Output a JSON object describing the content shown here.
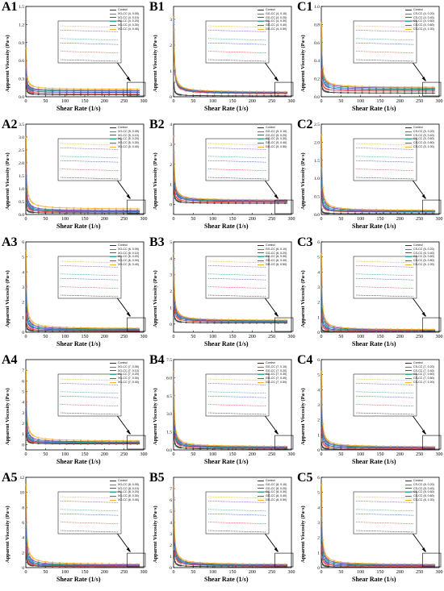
{
  "figure": {
    "xlabel": "Shear Rate (1/s)",
    "ylabel": "Apparent Viscosity (Pa·s)"
  },
  "colors": [
    "#333333",
    "#e8463a",
    "#3b55c4",
    "#2aa894",
    "#7b4fb0",
    "#f0b030"
  ],
  "chart_data": [
    {
      "id": "A1",
      "type": "line",
      "xlim": [
        0,
        300
      ],
      "xticks": [
        0,
        50,
        100,
        150,
        200,
        250,
        300
      ],
      "ylim": [
        0,
        1.5
      ],
      "yticks": [
        0.0,
        0.3,
        0.6,
        0.9,
        1.2,
        1.5
      ],
      "legend": [
        "Control",
        "XG-CC (4, 0.05)",
        "XG-CC (4, 0.10)",
        "XG-CC (4, 0.20)",
        "XG-CC (4, 0.30)",
        "XG-CC (4, 0.40)"
      ],
      "peaks": [
        0.22,
        0.33,
        0.42,
        0.48,
        0.55,
        0.8
      ],
      "tails": [
        0.03,
        0.05,
        0.07,
        0.09,
        0.1,
        0.12
      ]
    },
    {
      "id": "B1",
      "type": "line",
      "xlim": [
        0,
        300
      ],
      "xticks": [
        0,
        50,
        100,
        150,
        200,
        250,
        300
      ],
      "ylim": [
        0,
        3.5
      ],
      "yticks": [
        0,
        1,
        2,
        3
      ],
      "legend": [
        "Control",
        "GG-CC (4, 0.10)",
        "GG-CC (4, 0.20)",
        "GG-CC (4, 0.30)",
        "GG-CC (4, 0.40)",
        "GG-CC (4, 0.50)"
      ],
      "peaks": [
        0.55,
        2.6,
        2.8,
        2.9,
        3.0,
        3.1
      ],
      "tails": [
        0.03,
        0.1,
        0.12,
        0.14,
        0.15,
        0.17
      ]
    },
    {
      "id": "C1",
      "type": "line",
      "xlim": [
        0,
        300
      ],
      "xticks": [
        0,
        50,
        100,
        150,
        200,
        250,
        300
      ],
      "ylim": [
        0,
        1.0
      ],
      "yticks": [
        0.0,
        0.2,
        0.4,
        0.6,
        0.8,
        1.0
      ],
      "legend": [
        "Control",
        "CS-CC (4, 0.20)",
        "CS-CC (4, 0.40)",
        "CS-CC (4, 0.60)",
        "CS-CC (4, 0.80)",
        "CS-CC (4, 1.00)"
      ],
      "peaks": [
        0.18,
        0.3,
        0.5,
        0.65,
        0.78,
        0.82
      ],
      "tails": [
        0.04,
        0.06,
        0.07,
        0.08,
        0.09,
        0.1
      ]
    },
    {
      "id": "A2",
      "type": "line",
      "xlim": [
        0,
        300
      ],
      "xticks": [
        0,
        50,
        100,
        150,
        200,
        250,
        300
      ],
      "ylim": [
        0,
        3.5
      ],
      "yticks": [
        0.0,
        0.5,
        1.0,
        1.5,
        2.0,
        2.5,
        3.0,
        3.5
      ],
      "legend": [
        "Control",
        "XG-CC (5, 0.05)",
        "XG-CC (5, 0.10)",
        "XG-CC (5, 0.20)",
        "XG-CC (5, 0.30)",
        "XG-CC (5, 0.40)"
      ],
      "peaks": [
        0.4,
        0.9,
        1.3,
        1.6,
        2.0,
        3.0
      ],
      "tails": [
        0.05,
        0.08,
        0.1,
        0.12,
        0.14,
        0.2
      ]
    },
    {
      "id": "B2",
      "type": "line",
      "xlim": [
        0,
        300
      ],
      "xticks": [
        0,
        50,
        100,
        150,
        200,
        250,
        300
      ],
      "ylim": [
        -0.5,
        4
      ],
      "yticks": [
        0,
        1,
        2,
        3,
        4
      ],
      "legend": [
        "Control",
        "GG-CC (5, 0.10)",
        "GG-CC (5, 0.20)",
        "GG-CC (5, 0.30)",
        "GG-CC (5, 0.40)",
        "GG-CC (5, 0.50)"
      ],
      "peaks": [
        0.9,
        1.4,
        2.2,
        2.6,
        3.0,
        3.4
      ],
      "tails": [
        0.05,
        0.1,
        0.13,
        0.15,
        0.17,
        0.2
      ]
    },
    {
      "id": "C2",
      "type": "line",
      "xlim": [
        0,
        300
      ],
      "xticks": [
        0,
        50,
        100,
        150,
        200,
        250,
        300
      ],
      "ylim": [
        0,
        2.5
      ],
      "yticks": [
        0.0,
        0.5,
        1.0,
        1.5,
        2.0,
        2.5
      ],
      "legend": [
        "Control",
        "CS-CC (5, 0.20)",
        "CS-CC (5, 0.40)",
        "CS-CC (5, 0.60)",
        "CS-CC (5, 0.80)",
        "CS-CC (5, 1.00)"
      ],
      "peaks": [
        0.15,
        0.7,
        0.9,
        1.3,
        1.8,
        2.2
      ],
      "tails": [
        0.02,
        0.06,
        0.07,
        0.08,
        0.09,
        0.1
      ]
    },
    {
      "id": "A3",
      "type": "line",
      "xlim": [
        0,
        300
      ],
      "xticks": [
        0,
        50,
        100,
        150,
        200,
        250,
        300
      ],
      "ylim": [
        0,
        6
      ],
      "yticks": [
        0,
        1,
        2,
        3,
        4,
        5,
        6
      ],
      "legend": [
        "Control",
        "XG-CC (6, 0.05)",
        "XG-CC (6, 0.10)",
        "XG-CC (6, 0.20)",
        "XG-CC (6, 0.30)",
        "XG-CC (6, 0.40)"
      ],
      "peaks": [
        0.6,
        1.2,
        2.3,
        3.0,
        4.0,
        5.4
      ],
      "tails": [
        0.05,
        0.1,
        0.12,
        0.15,
        0.18,
        0.22
      ]
    },
    {
      "id": "B3",
      "type": "line",
      "xlim": [
        0,
        300
      ],
      "xticks": [
        0,
        50,
        100,
        150,
        200,
        250,
        300
      ],
      "ylim": [
        -0.5,
        5
      ],
      "yticks": [
        0,
        1,
        2,
        3,
        4,
        5
      ],
      "legend": [
        "Control",
        "GG-CC (6, 0.10)",
        "GG-CC (6, 0.20)",
        "GG-CC (6, 0.30)",
        "GG-CC (6, 0.40)",
        "GG-CC (6, 0.50)"
      ],
      "peaks": [
        0.9,
        2.0,
        2.8,
        3.4,
        3.9,
        4.3
      ],
      "tails": [
        0.05,
        0.1,
        0.13,
        0.15,
        0.17,
        0.2
      ]
    },
    {
      "id": "C3",
      "type": "line",
      "xlim": [
        0,
        300
      ],
      "xticks": [
        0,
        50,
        100,
        150,
        200,
        250,
        300
      ],
      "ylim": [
        0,
        6
      ],
      "yticks": [
        0,
        1,
        2,
        3,
        4,
        5,
        6
      ],
      "legend": [
        "Control",
        "CS-CC (6, 0.20)",
        "CS-CC (6, 0.40)",
        "CS-CC (6, 0.60)",
        "CS-CC (6, 0.80)",
        "CS-CC (6, 1.00)"
      ],
      "peaks": [
        0.3,
        1.2,
        2.0,
        3.0,
        4.2,
        5.2
      ],
      "tails": [
        0.03,
        0.06,
        0.08,
        0.1,
        0.12,
        0.14
      ]
    },
    {
      "id": "A4",
      "type": "line",
      "xlim": [
        0,
        300
      ],
      "xticks": [
        0,
        50,
        100,
        150,
        200,
        250,
        300
      ],
      "ylim": [
        -0.5,
        8
      ],
      "yticks": [
        0,
        1,
        2,
        3,
        4,
        5,
        6,
        7
      ],
      "legend": [
        "Control",
        "XG-CC (7, 0.05)",
        "XG-CC (7, 0.10)",
        "XG-CC (7, 0.20)",
        "XG-CC (7, 0.30)",
        "XG-CC (7, 0.40)"
      ],
      "peaks": [
        1.2,
        1.8,
        2.6,
        3.5,
        4.8,
        7.0
      ],
      "tails": [
        0.05,
        0.1,
        0.14,
        0.18,
        0.22,
        0.3
      ]
    },
    {
      "id": "B4",
      "type": "line",
      "xlim": [
        0,
        300
      ],
      "xticks": [
        0,
        50,
        100,
        150,
        200,
        250,
        300
      ],
      "ylim": [
        0,
        7.5
      ],
      "yticks": [
        0.0,
        1.5,
        3.0,
        4.5,
        6.0,
        7.5
      ],
      "legend": [
        "Control",
        "GG-CC (7, 0.10)",
        "GG-CC (7, 0.20)",
        "GG-CC (7, 0.30)",
        "GG-CC (7, 0.40)",
        "GG-CC (7, 0.50)"
      ],
      "peaks": [
        1.5,
        3.0,
        3.8,
        4.5,
        5.6,
        6.5
      ],
      "tails": [
        0.06,
        0.12,
        0.15,
        0.18,
        0.2,
        0.25
      ]
    },
    {
      "id": "C4",
      "type": "line",
      "xlim": [
        0,
        300
      ],
      "xticks": [
        0,
        50,
        100,
        150,
        200,
        250,
        300
      ],
      "ylim": [
        0,
        6
      ],
      "yticks": [
        0,
        1,
        2,
        3,
        4,
        5,
        6
      ],
      "legend": [
        "Control",
        "CS-CC (7, 0.20)",
        "CS-CC (7, 0.40)",
        "CS-CC (7, 0.60)",
        "CS-CC (7, 0.80)",
        "CS-CC (7, 1.00)"
      ],
      "peaks": [
        0.5,
        1.5,
        2.5,
        3.4,
        4.2,
        5.2
      ],
      "tails": [
        0.03,
        0.07,
        0.1,
        0.13,
        0.15,
        0.18
      ]
    },
    {
      "id": "A5",
      "type": "line",
      "xlim": [
        0,
        300
      ],
      "xticks": [
        0,
        50,
        100,
        150,
        200,
        250,
        300
      ],
      "ylim": [
        0,
        12
      ],
      "yticks": [
        0,
        2,
        4,
        6,
        8,
        10,
        12
      ],
      "legend": [
        "Control",
        "XG-CC (8, 0.05)",
        "XG-CC (8, 0.10)",
        "XG-CC (8, 0.20)",
        "XG-CC (8, 0.30)",
        "XG-CC (8, 0.40)"
      ],
      "peaks": [
        2.0,
        3.0,
        4.5,
        6.0,
        8.0,
        11.0
      ],
      "tails": [
        0.1,
        0.15,
        0.2,
        0.25,
        0.3,
        0.4
      ]
    },
    {
      "id": "B5",
      "type": "line",
      "xlim": [
        0,
        300
      ],
      "xticks": [
        0,
        50,
        100,
        150,
        200,
        250,
        300
      ],
      "ylim": [
        0,
        8
      ],
      "yticks": [
        0,
        1,
        2,
        3,
        4,
        5,
        6,
        7
      ],
      "legend": [
        "Control",
        "GG-CC (8, 0.10)",
        "GG-CC (8, 0.20)",
        "GG-CC (8, 0.30)",
        "GG-CC (8, 0.40)",
        "GG-CC (8, 0.50)"
      ],
      "peaks": [
        1.5,
        3.5,
        4.5,
        5.2,
        6.2,
        7.2
      ],
      "tails": [
        0.06,
        0.12,
        0.15,
        0.18,
        0.2,
        0.25
      ]
    },
    {
      "id": "C5",
      "type": "line",
      "xlim": [
        0,
        300
      ],
      "xticks": [
        0,
        50,
        100,
        150,
        200,
        250,
        300
      ],
      "ylim": [
        0,
        6
      ],
      "yticks": [
        0,
        1,
        2,
        3,
        4,
        5,
        6
      ],
      "legend": [
        "Control",
        "CS-CC (8, 0.20)",
        "CS-CC (8, 0.40)",
        "CS-CC (8, 0.60)",
        "CS-CC (8, 0.80)",
        "CS-CC (8, 1.00)"
      ],
      "peaks": [
        0.6,
        1.5,
        2.4,
        3.4,
        4.4,
        5.5
      ],
      "tails": [
        0.03,
        0.07,
        0.1,
        0.13,
        0.15,
        0.18
      ]
    }
  ]
}
